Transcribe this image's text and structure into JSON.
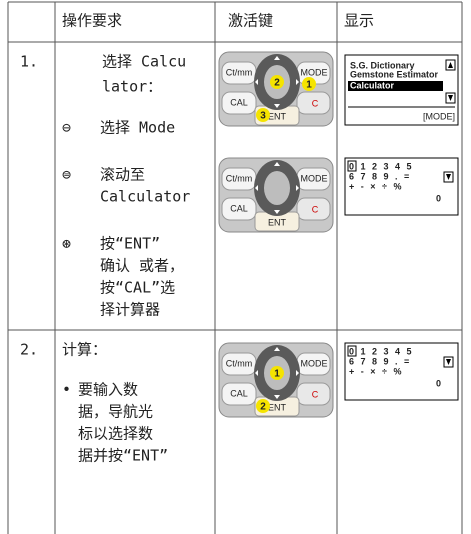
{
  "table": {
    "header": [
      "操作要求",
      "激活键",
      "显示"
    ],
    "rows": [
      {
        "step": "1.",
        "lines": [
          "选择 Calcu",
          "lator："
        ],
        "items": [
          {
            "symbol": "⊖",
            "lines": [
              "选择 Mode"
            ]
          },
          {
            "symbol": "⊜",
            "lines": [
              "滚动至",
              "Calculator"
            ]
          },
          {
            "symbol": "⊛",
            "lines": [
              "按“ENT”",
              "确认 或者，",
              "按“CAL”选",
              "择计算器"
            ]
          }
        ],
        "keypads": [
          {
            "labels": {
              "left": "Ct/mm",
              "right": "MODE",
              "bottom_left": "CAL",
              "bottom": "ENT",
              "bottom_right": "C"
            },
            "badges": {
              "center": "2",
              "right": "1",
              "bottom": "3"
            }
          },
          {
            "labels": {
              "left": "Ct/mm",
              "right": "MODE",
              "bottom_left": "CAL",
              "bottom": "ENT",
              "bottom_right": "C"
            }
          }
        ],
        "displays": [
          {
            "lines": [
              "S.G. Dictionary",
              "Gemstone Estimator"
            ],
            "highlight": "Calculator",
            "footer": "[MODE]"
          },
          {
            "rows": [
              "0 1 2 3 4 5",
              "6 7 8 9 . =",
              "+ - × ÷ %"
            ],
            "result": "0"
          }
        ]
      },
      {
        "step": "2.",
        "lines": [
          "计算："
        ],
        "items": [
          {
            "symbol": "•",
            "lines": [
              "要输入数",
              "据，导航光",
              "标以选择数",
              "据并按“ENT”"
            ]
          }
        ],
        "keypads": [
          {
            "labels": {
              "left": "Ct/mm",
              "right": "MODE",
              "bottom_left": "CAL",
              "bottom": "ENT",
              "bottom_right": "C"
            },
            "badges": {
              "center": "1",
              "bottom": "2"
            }
          }
        ],
        "displays": [
          {
            "rows": [
              "0 1 2 3 4 5",
              "6 7 8 9 . =",
              "+ - × ÷ %"
            ],
            "result": "0"
          }
        ]
      }
    ]
  }
}
